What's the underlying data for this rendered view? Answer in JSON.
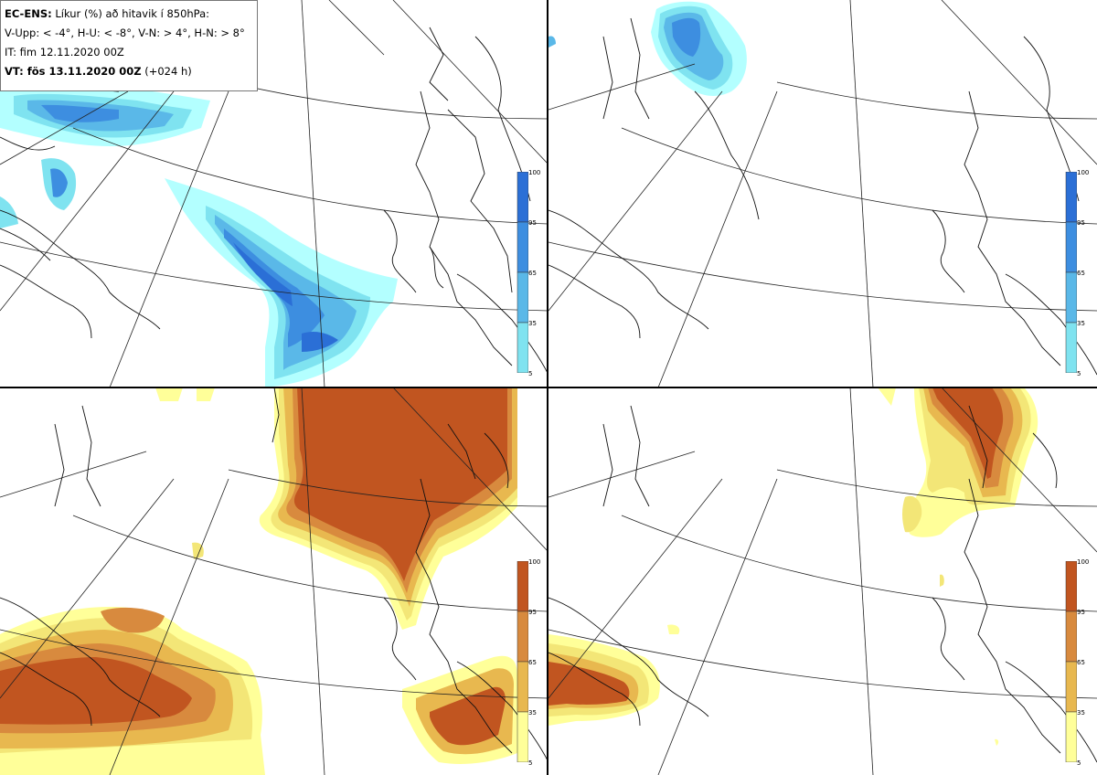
{
  "info": {
    "line1_bold": "EC-ENS:",
    "line1_rest": "Líkur (%) að hitavik í 850hPa:",
    "line2": "V-Upp: < -4°, H-U: < -8°, V-N: > 4°, H-N: > 8°",
    "line3": "IT: fim 12.11.2020 00Z",
    "line4_bold": "VT: fös 13.11.2020 00Z",
    "line4_rest": "(+024 h)"
  },
  "colorbar": {
    "ticks": [
      "100",
      "95",
      "65",
      "35",
      "5"
    ],
    "cold_colors": [
      "#2b6fd6",
      "#3d8ee0",
      "#5ab8e8",
      "#7fe3f0",
      "#b3ffff"
    ],
    "warm_colors": [
      "#c15520",
      "#d88a3e",
      "#e8b84f",
      "#f3e677",
      "#ffff99"
    ]
  },
  "panels": [
    {
      "id": "upper-left",
      "variable": "cold < -4°"
    },
    {
      "id": "upper-right",
      "variable": "cold < -8°"
    },
    {
      "id": "lower-left",
      "variable": "warm > 4°"
    },
    {
      "id": "lower-right",
      "variable": "warm > 8°"
    }
  ]
}
